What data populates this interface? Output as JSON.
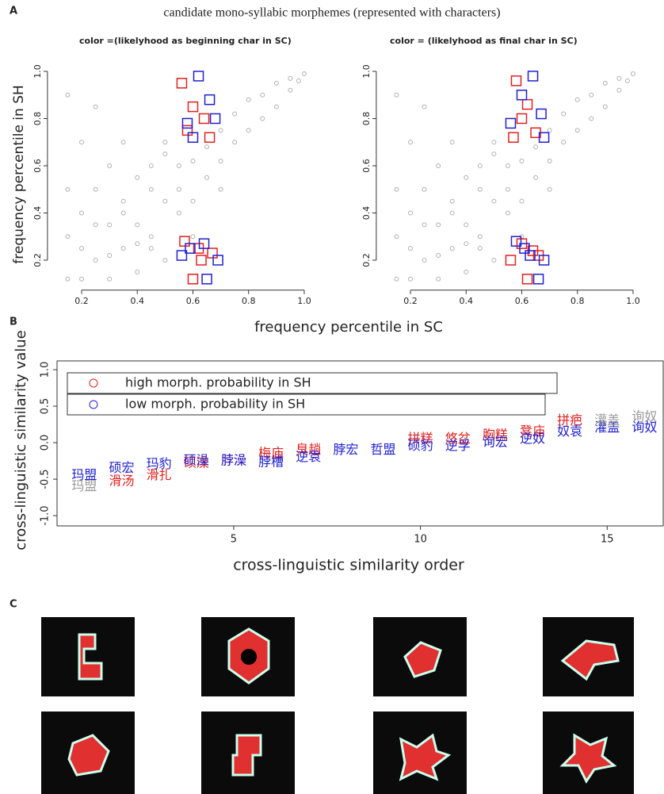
{
  "figure_title": "candidate mono-syllabic morphemes (represented with characters)",
  "panel_labels": [
    "A",
    "B",
    "C"
  ],
  "chart_data": [
    {
      "type": "scatter",
      "subtitle": "color =(likelyhood as beginning char in SC)",
      "ylabel": "frequency percentile in SH",
      "xlabel": "frequency percentile in SC",
      "xlim": [
        0.1,
        1.03
      ],
      "ylim": [
        0.1,
        1.05
      ],
      "xticks": [
        0.2,
        0.4,
        0.6,
        0.8,
        {
          "value": 1,
          "label": "1.0"
        }
      ],
      "yticks": [
        0.2,
        0.4,
        0.6,
        0.8,
        {
          "value": 1,
          "label": "1.0"
        }
      ],
      "series": [
        {
          "color": "#b0b0b0",
          "x": [
            0.15,
            0.15,
            0.15,
            0.15,
            0.2,
            0.2,
            0.2,
            0.25,
            0.25,
            0.25,
            0.3,
            0.3,
            0.3,
            0.35,
            0.35,
            0.35,
            0.4,
            0.4,
            0.4,
            0.45,
            0.45,
            0.5,
            0.5,
            0.5,
            0.55,
            0.55,
            0.6,
            0.6,
            0.65,
            0.65,
            0.7,
            0.7,
            0.75,
            0.75,
            0.8,
            0.8,
            0.85,
            0.85,
            0.9,
            0.9,
            0.95,
            0.95,
            0.98,
            1.0,
            0.3,
            0.4,
            0.45,
            0.5,
            0.6,
            0.7,
            0.2,
            0.25,
            0.35,
            0.45,
            0.55
          ],
          "values": [
            0.12,
            0.3,
            0.5,
            0.9,
            0.12,
            0.4,
            0.7,
            0.2,
            0.5,
            0.85,
            0.12,
            0.35,
            0.6,
            0.25,
            0.45,
            0.7,
            0.15,
            0.35,
            0.55,
            0.3,
            0.6,
            0.2,
            0.45,
            0.65,
            0.4,
            0.6,
            0.45,
            0.62,
            0.55,
            0.68,
            0.62,
            0.75,
            0.7,
            0.82,
            0.75,
            0.88,
            0.8,
            0.9,
            0.85,
            0.95,
            0.92,
            0.97,
            0.96,
            0.99,
            0.22,
            0.27,
            0.5,
            0.7,
            0.3,
            0.5,
            0.25,
            0.35,
            0.4,
            0.25,
            0.5
          ]
        },
        {
          "color": "#e02020",
          "x": [
            0.56,
            0.6,
            0.64,
            0.58,
            0.66,
            0.62,
            0.57,
            0.63,
            0.6,
            0.67
          ],
          "values": [
            0.95,
            0.85,
            0.8,
            0.75,
            0.72,
            0.25,
            0.28,
            0.2,
            0.12,
            0.23
          ]
        },
        {
          "color": "#2020d0",
          "x": [
            0.62,
            0.66,
            0.58,
            0.68,
            0.6,
            0.64,
            0.56,
            0.65,
            0.69,
            0.59
          ],
          "values": [
            0.98,
            0.88,
            0.78,
            0.8,
            0.72,
            0.27,
            0.22,
            0.12,
            0.2,
            0.25
          ]
        }
      ]
    },
    {
      "type": "scatter",
      "subtitle": "color = (likelyhood as final char in SC)",
      "xlim": [
        0.1,
        1.03
      ],
      "ylim": [
        0.1,
        1.05
      ],
      "xticks": [
        0.2,
        0.4,
        0.6,
        0.8,
        {
          "value": 1,
          "label": "1.0"
        }
      ],
      "yticks": [
        0.2,
        0.4,
        0.6,
        0.8,
        {
          "value": 1,
          "label": "1.0"
        }
      ],
      "series": [
        {
          "color": "#b0b0b0",
          "x": [
            0.15,
            0.15,
            0.15,
            0.15,
            0.2,
            0.2,
            0.2,
            0.25,
            0.25,
            0.25,
            0.3,
            0.3,
            0.3,
            0.35,
            0.35,
            0.35,
            0.4,
            0.4,
            0.4,
            0.45,
            0.45,
            0.5,
            0.5,
            0.5,
            0.55,
            0.55,
            0.6,
            0.6,
            0.65,
            0.65,
            0.7,
            0.7,
            0.75,
            0.75,
            0.8,
            0.8,
            0.85,
            0.85,
            0.9,
            0.9,
            0.95,
            0.95,
            0.98,
            1.0,
            0.3,
            0.4,
            0.45,
            0.5,
            0.6,
            0.7,
            0.2,
            0.25,
            0.35,
            0.45,
            0.55
          ],
          "values": [
            0.12,
            0.3,
            0.5,
            0.9,
            0.12,
            0.4,
            0.7,
            0.2,
            0.5,
            0.85,
            0.12,
            0.35,
            0.6,
            0.25,
            0.45,
            0.7,
            0.15,
            0.35,
            0.55,
            0.3,
            0.6,
            0.2,
            0.45,
            0.65,
            0.4,
            0.6,
            0.45,
            0.62,
            0.55,
            0.68,
            0.62,
            0.75,
            0.7,
            0.82,
            0.75,
            0.88,
            0.8,
            0.9,
            0.85,
            0.95,
            0.92,
            0.97,
            0.96,
            0.99,
            0.22,
            0.27,
            0.5,
            0.7,
            0.3,
            0.5,
            0.25,
            0.35,
            0.4,
            0.25,
            0.5
          ]
        },
        {
          "color": "#e02020",
          "x": [
            0.58,
            0.62,
            0.6,
            0.65,
            0.57,
            0.6,
            0.64,
            0.56,
            0.62,
            0.66
          ],
          "values": [
            0.96,
            0.86,
            0.8,
            0.74,
            0.72,
            0.27,
            0.24,
            0.2,
            0.12,
            0.22
          ]
        },
        {
          "color": "#2020d0",
          "x": [
            0.64,
            0.6,
            0.67,
            0.56,
            0.68,
            0.58,
            0.63,
            0.66,
            0.68,
            0.61
          ],
          "values": [
            0.98,
            0.9,
            0.82,
            0.78,
            0.72,
            0.28,
            0.22,
            0.12,
            0.2,
            0.25
          ]
        }
      ]
    },
    {
      "type": "scatter",
      "ylabel": "cross-linguistic similarity value",
      "xlabel": "cross-linguistic similarity order",
      "xlim": [
        0.27,
        16.5
      ],
      "ylim": [
        -1.14,
        1.12
      ],
      "box": true,
      "xticks": [
        5,
        10,
        15
      ],
      "yticks": [
        {
          "value": -1,
          "label": "-1.0"
        },
        -0.5,
        {
          "value": 0,
          "label": "0.0"
        },
        0.5,
        {
          "value": 1,
          "label": "1.0"
        }
      ],
      "series": [
        {
          "name": "high morph. probability in SH",
          "color": "#e02020",
          "x": [
            2,
            3,
            4,
            5,
            6,
            7,
            10,
            11,
            12,
            13,
            14
          ],
          "values": [
            -0.53,
            -0.45,
            -0.28,
            -0.25,
            -0.15,
            -0.1,
            0.05,
            0.05,
            0.1,
            0.15,
            0.3
          ],
          "labels": [
            "滑汤",
            "滑扎",
            "硕澡",
            "脖澡",
            "梅庙",
            "臭趟",
            "拼糕",
            "悠盆",
            "胸糕",
            "凳庙",
            "拼疤"
          ]
        },
        {
          "name": "low morph. probability in SH",
          "color": "#2020d0",
          "x": [
            1,
            2,
            3,
            4,
            5,
            6,
            7,
            8,
            9,
            10,
            11,
            12,
            13,
            14,
            15,
            16
          ],
          "values": [
            -0.45,
            -0.35,
            -0.3,
            -0.25,
            -0.25,
            -0.27,
            -0.2,
            -0.1,
            -0.1,
            -0.05,
            -0.05,
            0.0,
            0.05,
            0.15,
            0.2,
            0.2
          ],
          "labels": [
            "玛盟",
            "硕宏",
            "玛豹",
            "硕澡",
            "脖澡",
            "脖槽",
            "逆袁",
            "脖宏",
            "哲盟",
            "硕豹",
            "逆孚",
            "询宏",
            "逆奴",
            "奴袁",
            "灌盖",
            "询奴"
          ]
        },
        {
          "color": "#999999",
          "x": [
            1,
            15,
            16
          ],
          "values": [
            -0.6,
            0.3,
            0.35
          ],
          "labels": [
            "玛盟",
            "灌盖",
            "询奴"
          ]
        }
      ]
    }
  ]
}
